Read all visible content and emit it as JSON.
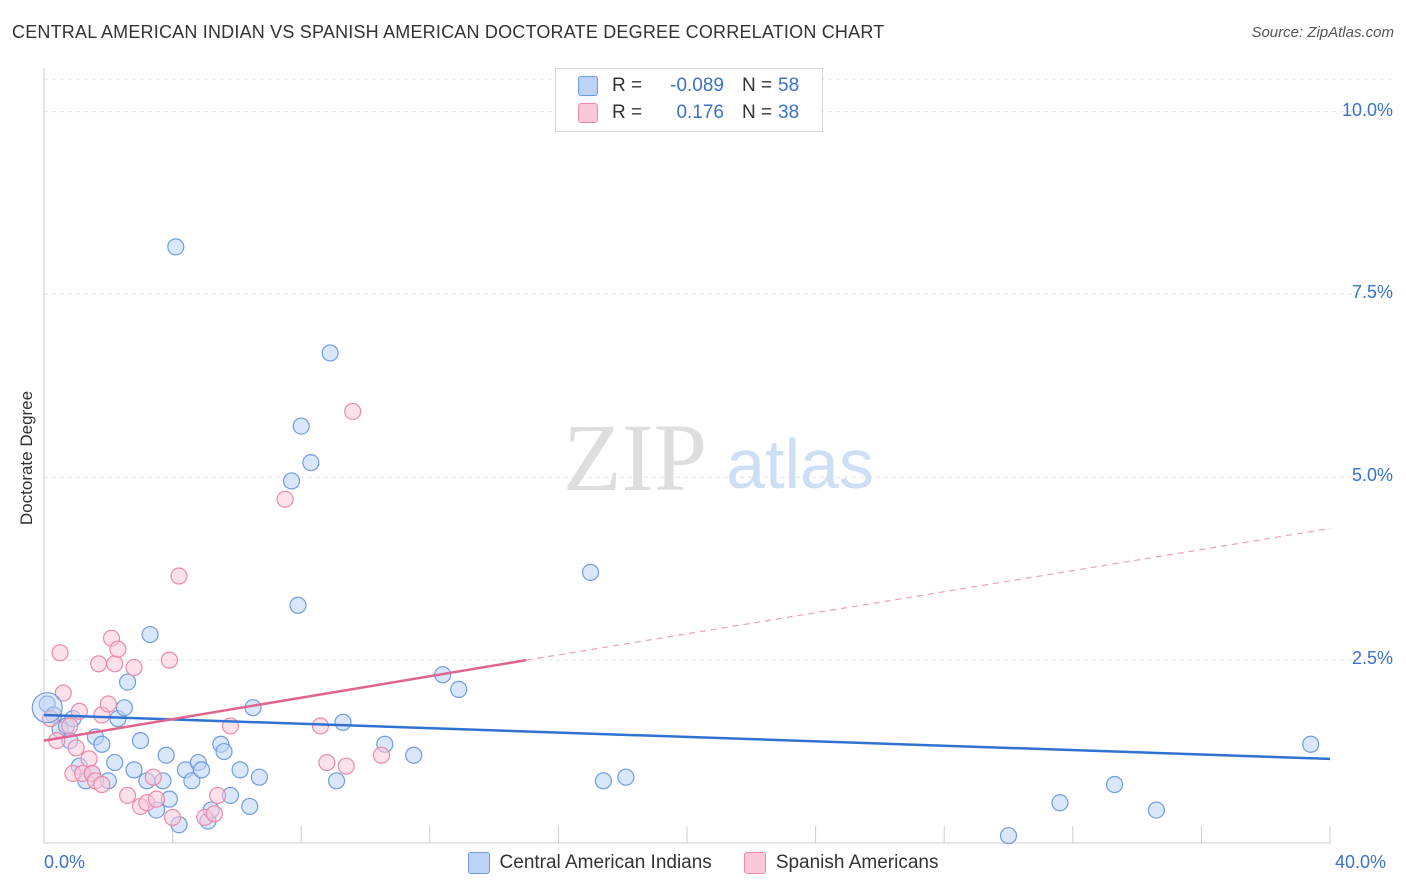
{
  "chart_data": {
    "type": "scatter",
    "title": "CENTRAL AMERICAN INDIAN VS SPANISH AMERICAN DOCTORATE DEGREE CORRELATION CHART",
    "source": "Source: ZipAtlas.com",
    "ylabel": "Doctorate Degree",
    "xlabel": "",
    "watermark": {
      "zip": "ZIP",
      "atlas": "atlas"
    },
    "xlim": [
      0,
      40
    ],
    "ylim": [
      0,
      10.5
    ],
    "x_tick_labels": {
      "min": "0.0%",
      "max": "40.0%"
    },
    "y_ticks": [
      {
        "value": 2.5,
        "label": "2.5%"
      },
      {
        "value": 5.0,
        "label": "5.0%"
      },
      {
        "value": 7.5,
        "label": "7.5%"
      },
      {
        "value": 10.0,
        "label": "10.0%"
      }
    ],
    "x_minor_ticks": [
      4,
      8,
      12,
      16,
      20,
      24,
      28,
      32,
      36,
      40
    ],
    "legend": {
      "r_label": "R =",
      "n_label": "N =",
      "entries": [
        {
          "r": "-0.089",
          "n": "58"
        },
        {
          "r": "0.176",
          "n": "38"
        }
      ]
    },
    "series": [
      {
        "name": "Central American Indians",
        "color": "#6f9ce0",
        "fill": "#bcd3f5",
        "trend": {
          "x0": 0,
          "y0": 1.75,
          "x1": 40,
          "y1": 1.15
        },
        "points": [
          [
            0.1,
            1.9
          ],
          [
            0.3,
            1.75
          ],
          [
            0.5,
            1.55
          ],
          [
            0.7,
            1.6
          ],
          [
            0.8,
            1.4
          ],
          [
            0.9,
            1.7
          ],
          [
            1.1,
            1.05
          ],
          [
            1.3,
            0.85
          ],
          [
            1.5,
            0.95
          ],
          [
            1.6,
            1.45
          ],
          [
            1.8,
            1.35
          ],
          [
            2.0,
            0.85
          ],
          [
            2.2,
            1.1
          ],
          [
            2.3,
            1.7
          ],
          [
            2.5,
            1.85
          ],
          [
            2.6,
            2.2
          ],
          [
            2.8,
            1.0
          ],
          [
            3.0,
            1.4
          ],
          [
            3.2,
            0.85
          ],
          [
            3.3,
            2.85
          ],
          [
            3.5,
            0.45
          ],
          [
            3.7,
            0.85
          ],
          [
            3.8,
            1.2
          ],
          [
            3.9,
            0.6
          ],
          [
            4.1,
            8.15
          ],
          [
            4.2,
            0.25
          ],
          [
            4.4,
            1.0
          ],
          [
            4.6,
            0.85
          ],
          [
            4.8,
            1.1
          ],
          [
            4.9,
            1.0
          ],
          [
            5.1,
            0.3
          ],
          [
            5.2,
            0.45
          ],
          [
            5.5,
            1.35
          ],
          [
            5.6,
            1.25
          ],
          [
            5.8,
            0.65
          ],
          [
            6.1,
            1.0
          ],
          [
            6.4,
            0.5
          ],
          [
            6.5,
            1.85
          ],
          [
            6.7,
            0.9
          ],
          [
            7.7,
            4.95
          ],
          [
            7.9,
            3.25
          ],
          [
            8.0,
            5.7
          ],
          [
            8.3,
            5.2
          ],
          [
            8.9,
            6.7
          ],
          [
            9.1,
            0.85
          ],
          [
            9.3,
            1.65
          ],
          [
            10.6,
            1.35
          ],
          [
            11.5,
            1.2
          ],
          [
            12.4,
            2.3
          ],
          [
            12.9,
            2.1
          ],
          [
            17.0,
            3.7
          ],
          [
            17.4,
            0.85
          ],
          [
            18.1,
            0.9
          ],
          [
            30.0,
            0.1
          ],
          [
            31.6,
            0.55
          ],
          [
            33.3,
            0.8
          ],
          [
            34.6,
            0.45
          ],
          [
            39.4,
            1.35
          ]
        ]
      },
      {
        "name": "Spanish Americans",
        "color": "#ea8aaa",
        "fill": "#fac8d8",
        "trend": {
          "x0": 0,
          "y0": 1.4,
          "x1": 15,
          "y1": 2.5,
          "dash_x1": 40,
          "dash_y1": 4.3
        },
        "points": [
          [
            0.2,
            1.7
          ],
          [
            0.4,
            1.4
          ],
          [
            0.5,
            2.6
          ],
          [
            0.6,
            2.05
          ],
          [
            0.8,
            1.6
          ],
          [
            0.9,
            0.95
          ],
          [
            1.0,
            1.3
          ],
          [
            1.1,
            1.8
          ],
          [
            1.2,
            0.95
          ],
          [
            1.4,
            1.15
          ],
          [
            1.5,
            0.95
          ],
          [
            1.6,
            0.85
          ],
          [
            1.7,
            2.45
          ],
          [
            1.8,
            0.8
          ],
          [
            1.8,
            1.75
          ],
          [
            2.0,
            1.9
          ],
          [
            2.1,
            2.8
          ],
          [
            2.2,
            2.45
          ],
          [
            2.3,
            2.65
          ],
          [
            2.6,
            0.65
          ],
          [
            2.8,
            2.4
          ],
          [
            3.0,
            0.5
          ],
          [
            3.2,
            0.55
          ],
          [
            3.4,
            0.9
          ],
          [
            3.5,
            0.6
          ],
          [
            3.9,
            2.5
          ],
          [
            4.0,
            0.35
          ],
          [
            4.2,
            3.65
          ],
          [
            5.0,
            0.35
          ],
          [
            5.3,
            0.4
          ],
          [
            5.4,
            0.65
          ],
          [
            5.8,
            1.6
          ],
          [
            7.5,
            4.7
          ],
          [
            8.6,
            1.6
          ],
          [
            8.8,
            1.1
          ],
          [
            9.4,
            1.05
          ],
          [
            9.6,
            5.9
          ],
          [
            10.5,
            1.2
          ]
        ]
      }
    ]
  }
}
